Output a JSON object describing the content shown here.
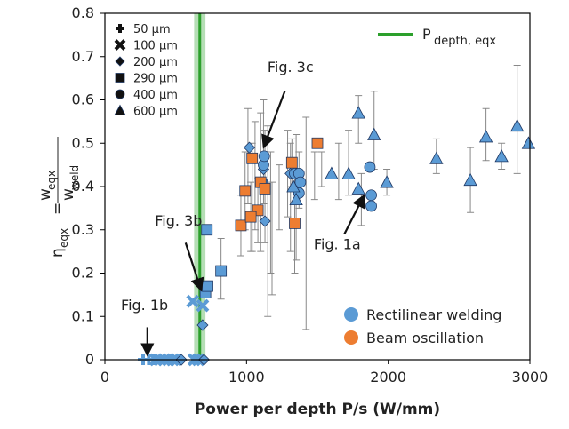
{
  "chart_data": {
    "type": "scatter",
    "title": "",
    "xlabel": "Power per depth P/s (W/mm)",
    "ylabel_lhs": "η",
    "ylabel_lhs_sub": "eqx",
    "ylabel_eq": "=",
    "ylabel_num": "w",
    "ylabel_num_sub": "eqx",
    "ylabel_den": "w",
    "ylabel_den_sub": "weld",
    "xlim": [
      0,
      3000
    ],
    "ylim": [
      0,
      0.8
    ],
    "x_ticks": [
      0,
      1000,
      2000,
      3000
    ],
    "y_ticks": [
      0,
      0.1,
      0.2,
      0.3,
      0.4,
      0.5,
      0.6,
      0.7,
      0.8
    ],
    "x_tick_labels": [
      "0",
      "1000",
      "2000",
      "3000"
    ],
    "y_tick_labels": [
      "0",
      "0.1",
      "0.2",
      "0.3",
      "0.4",
      "0.5",
      "0.6",
      "0.7",
      "0.8"
    ],
    "grid": false,
    "colors": {
      "rectilinear": "#5b9bd5",
      "oscillation": "#ed7d31",
      "pdepth": "#2ca02c",
      "errorbar": "#888888",
      "edge": "#1f3864"
    },
    "pdepth_line": {
      "label_main": "P",
      "label_sub": "depth, eqx",
      "x": 670,
      "band": [
        630,
        710
      ]
    },
    "marker_legend": [
      {
        "symbol": "plus",
        "label": "50 μm"
      },
      {
        "symbol": "cross",
        "label": "100 μm"
      },
      {
        "symbol": "diamond",
        "label": "200 μm"
      },
      {
        "symbol": "square",
        "label": "290 μm"
      },
      {
        "symbol": "circle",
        "label": "400 μm"
      },
      {
        "symbol": "triangle",
        "label": "600 μm"
      }
    ],
    "process_legend": [
      {
        "key": "rectilinear",
        "label": "Rectilinear welding"
      },
      {
        "key": "oscillation",
        "label": "Beam oscillation"
      }
    ],
    "annotations": [
      {
        "label": "Fig. 3c",
        "text_x": 1310,
        "text_y": 0.665,
        "arrow_from": [
          1270,
          0.62
        ],
        "arrow_to": [
          1120,
          0.49
        ]
      },
      {
        "label": "Fig. 3b",
        "text_x": 520,
        "text_y": 0.31,
        "arrow_from": [
          570,
          0.27
        ],
        "arrow_to": [
          680,
          0.16
        ]
      },
      {
        "label": "Fig. 1a",
        "text_x": 1640,
        "text_y": 0.255,
        "arrow_from": [
          1690,
          0.29
        ],
        "arrow_to": [
          1830,
          0.38
        ]
      },
      {
        "label": "Fig. 1b",
        "text_x": 280,
        "text_y": 0.115,
        "arrow_from": [
          300,
          0.075
        ],
        "arrow_to": [
          300,
          0.01
        ]
      }
    ],
    "series": [
      {
        "process": "rectilinear",
        "symbol": "plus",
        "points": [
          [
            270,
            0
          ],
          [
            310,
            0
          ],
          [
            340,
            0
          ]
        ]
      },
      {
        "process": "rectilinear",
        "symbol": "cross",
        "points": [
          [
            360,
            0
          ],
          [
            390,
            0
          ],
          [
            420,
            0
          ],
          [
            450,
            0
          ],
          [
            480,
            0
          ],
          [
            500,
            0
          ],
          [
            630,
            0
          ],
          [
            660,
            0
          ],
          [
            620,
            0.135
          ],
          [
            690,
            0.125
          ]
        ]
      },
      {
        "process": "rectilinear",
        "symbol": "diamond",
        "points": [
          [
            540,
            0
          ],
          [
            700,
            0
          ],
          [
            690,
            0.08
          ],
          [
            1020,
            0.49
          ],
          [
            1120,
            0.44
          ],
          [
            1130,
            0.32
          ],
          [
            1310,
            0.43
          ]
        ]
      },
      {
        "process": "rectilinear",
        "symbol": "square",
        "points": [
          [
            720,
            0.3
          ],
          [
            710,
            0.155
          ],
          [
            725,
            0.17
          ],
          [
            820,
            0.205
          ]
        ]
      },
      {
        "process": "rectilinear",
        "symbol": "circle",
        "points": [
          [
            1110,
            0.41
          ],
          [
            1120,
            0.45
          ],
          [
            1125,
            0.47
          ],
          [
            1340,
            0.43
          ],
          [
            1370,
            0.43
          ],
          [
            1380,
            0.41
          ],
          [
            1370,
            0.385
          ],
          [
            1870,
            0.445
          ],
          [
            1880,
            0.38
          ],
          [
            1880,
            0.355
          ]
        ]
      },
      {
        "process": "rectilinear",
        "symbol": "triangle",
        "points": [
          [
            1330,
            0.4
          ],
          [
            1350,
            0.37
          ],
          [
            1600,
            0.43
          ],
          [
            1720,
            0.43
          ],
          [
            1790,
            0.57
          ],
          [
            1790,
            0.395
          ],
          [
            1900,
            0.52
          ],
          [
            1990,
            0.41
          ],
          [
            2340,
            0.465
          ],
          [
            2580,
            0.415
          ],
          [
            2690,
            0.515
          ],
          [
            2800,
            0.47
          ],
          [
            2910,
            0.54
          ],
          [
            2990,
            0.5
          ]
        ]
      },
      {
        "process": "oscillation",
        "symbol": "square",
        "points": [
          [
            960,
            0.31
          ],
          [
            990,
            0.39
          ],
          [
            1040,
            0.465
          ],
          [
            1080,
            0.345
          ],
          [
            1030,
            0.33
          ],
          [
            1100,
            0.41
          ],
          [
            1130,
            0.395
          ],
          [
            1320,
            0.455
          ],
          [
            1340,
            0.315
          ],
          [
            1500,
            0.5
          ]
        ]
      }
    ],
    "error_bars": [
      [
        1010,
        0.36,
        0.58
      ],
      [
        1060,
        0.3,
        0.55
      ],
      [
        1100,
        0.25,
        0.57
      ],
      [
        1120,
        0.36,
        0.6
      ],
      [
        1150,
        0.1,
        0.54
      ],
      [
        1170,
        0.2,
        0.48
      ],
      [
        1180,
        0.15,
        0.41
      ],
      [
        1230,
        0.3,
        0.45
      ],
      [
        1290,
        0.33,
        0.53
      ],
      [
        1310,
        0.25,
        0.5
      ],
      [
        1350,
        0.23,
        0.52
      ],
      [
        1370,
        0.35,
        0.48
      ],
      [
        1420,
        0.07,
        0.56
      ],
      [
        1480,
        0.37,
        0.48
      ],
      [
        1530,
        0.4,
        0.48
      ],
      [
        1650,
        0.37,
        0.5
      ],
      [
        1720,
        0.38,
        0.53
      ],
      [
        1790,
        0.5,
        0.61
      ],
      [
        1810,
        0.31,
        0.43
      ],
      [
        1900,
        0.44,
        0.62
      ],
      [
        1990,
        0.38,
        0.44
      ],
      [
        2340,
        0.43,
        0.51
      ],
      [
        2580,
        0.34,
        0.49
      ],
      [
        2690,
        0.46,
        0.58
      ],
      [
        2800,
        0.44,
        0.5
      ],
      [
        2910,
        0.43,
        0.68
      ],
      [
        960,
        0.24,
        0.38
      ],
      [
        990,
        0.3,
        0.48
      ],
      [
        1040,
        0.25,
        0.5
      ],
      [
        1080,
        0.27,
        0.42
      ],
      [
        1030,
        0.25,
        0.41
      ],
      [
        1130,
        0.27,
        0.53
      ],
      [
        1320,
        0.4,
        0.51
      ],
      [
        1340,
        0.2,
        0.43
      ],
      [
        820,
        0.14,
        0.28
      ]
    ]
  }
}
